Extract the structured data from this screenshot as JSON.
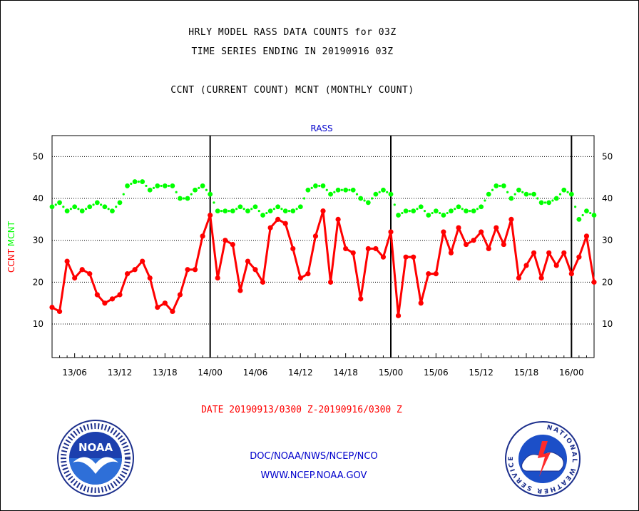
{
  "titles": {
    "line1": "HRLY MODEL RASS DATA COUNTS for 03Z",
    "line2": "TIME SERIES ENDING IN 20190916 03Z",
    "line3": "CCNT (CURRENT COUNT) MCNT (MONTHLY COUNT)"
  },
  "chart_data": {
    "type": "line",
    "title": "RASS",
    "ylabel_parts": [
      {
        "text": "CCNT",
        "color": "#ff0000"
      },
      {
        "text": "MCNT",
        "color": "#00ff00"
      }
    ],
    "xlabel": "DATE 20190913/0300 Z-20190916/0300 Z",
    "ylim": [
      2,
      55
    ],
    "xlim_hours": [
      3,
      75
    ],
    "yticks": [
      10,
      20,
      30,
      40,
      50
    ],
    "xticks": [
      {
        "hour": 6,
        "label": "13/06"
      },
      {
        "hour": 12,
        "label": "13/12"
      },
      {
        "hour": 18,
        "label": "13/18"
      },
      {
        "hour": 24,
        "label": "14/00"
      },
      {
        "hour": 30,
        "label": "14/06"
      },
      {
        "hour": 36,
        "label": "14/12"
      },
      {
        "hour": 42,
        "label": "14/18"
      },
      {
        "hour": 48,
        "label": "15/00"
      },
      {
        "hour": 54,
        "label": "15/06"
      },
      {
        "hour": 60,
        "label": "15/12"
      },
      {
        "hour": 66,
        "label": "15/18"
      },
      {
        "hour": 72,
        "label": "16/00"
      }
    ],
    "day_separators_hours": [
      24,
      48,
      72
    ],
    "grid": "horizontal dotted",
    "x_start_hour": 3,
    "series": [
      {
        "key": "CCNT",
        "color": "#ff0000",
        "style": "line-markers",
        "values": [
          14,
          13,
          25,
          21,
          23,
          22,
          17,
          15,
          16,
          17,
          22,
          23,
          25,
          21,
          14,
          15,
          13,
          17,
          23,
          23,
          31,
          36,
          21,
          30,
          29,
          18,
          25,
          23,
          20,
          33,
          35,
          34,
          28,
          21,
          22,
          31,
          37,
          20,
          35,
          28,
          27,
          16,
          28,
          28,
          26,
          32,
          12,
          26,
          26,
          15,
          22,
          22,
          32,
          27,
          33,
          29,
          30,
          32,
          28,
          33,
          29,
          35,
          21,
          24,
          27,
          21,
          27,
          24,
          27,
          22,
          26,
          31,
          20
        ]
      },
      {
        "key": "MCNT",
        "color": "#00ff00",
        "style": "dots",
        "values": [
          38,
          39,
          37,
          38,
          37,
          38,
          39,
          38,
          37,
          39,
          43,
          44,
          44,
          42,
          43,
          43,
          43,
          40,
          40,
          42,
          43,
          41,
          37,
          37,
          37,
          38,
          37,
          38,
          36,
          37,
          38,
          37,
          37,
          38,
          42,
          43,
          43,
          41,
          42,
          42,
          42,
          40,
          39,
          41,
          42,
          41,
          36,
          37,
          37,
          38,
          36,
          37,
          36,
          37,
          38,
          37,
          37,
          38,
          41,
          43,
          43,
          40,
          42,
          41,
          41,
          39,
          39,
          40,
          42,
          41,
          35,
          37,
          36
        ]
      }
    ]
  },
  "footer": {
    "line1": "DOC/NOAA/NWS/NCEP/NCO",
    "line2": "WWW.NCEP.NOAA.GOV"
  },
  "logos": {
    "left_text": "NOAA",
    "right_text": "NATIONAL WEATHER SERVICE"
  },
  "colors": {
    "ccnt": "#ff0000",
    "mcnt": "#00ff00",
    "chart_title": "#0000cc",
    "footer": "#0000cc",
    "xlabel": "#ff0000"
  }
}
